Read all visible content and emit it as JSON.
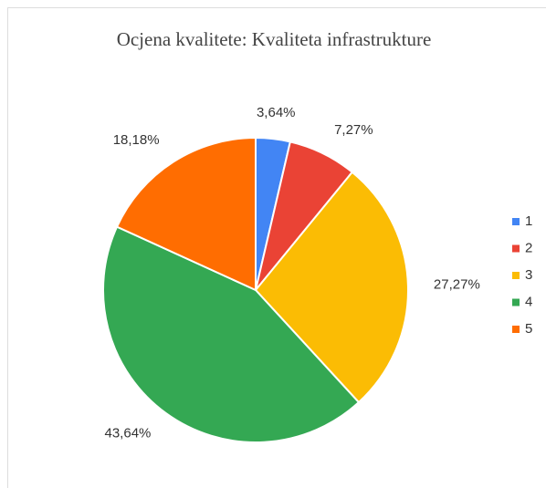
{
  "chart_data": {
    "type": "pie",
    "title": "Ocjena kvalitete: Kvaliteta infrastrukture",
    "categories": [
      "1",
      "2",
      "3",
      "4",
      "5"
    ],
    "values": [
      3.64,
      7.27,
      27.27,
      43.64,
      18.18
    ],
    "value_labels": [
      "3,64%",
      "7,27%",
      "27,27%",
      "43,64%",
      "18,18%"
    ],
    "colors": [
      "#4285f4",
      "#ea4335",
      "#fbbc04",
      "#34a853",
      "#ff6d01"
    ],
    "legend": "right"
  }
}
